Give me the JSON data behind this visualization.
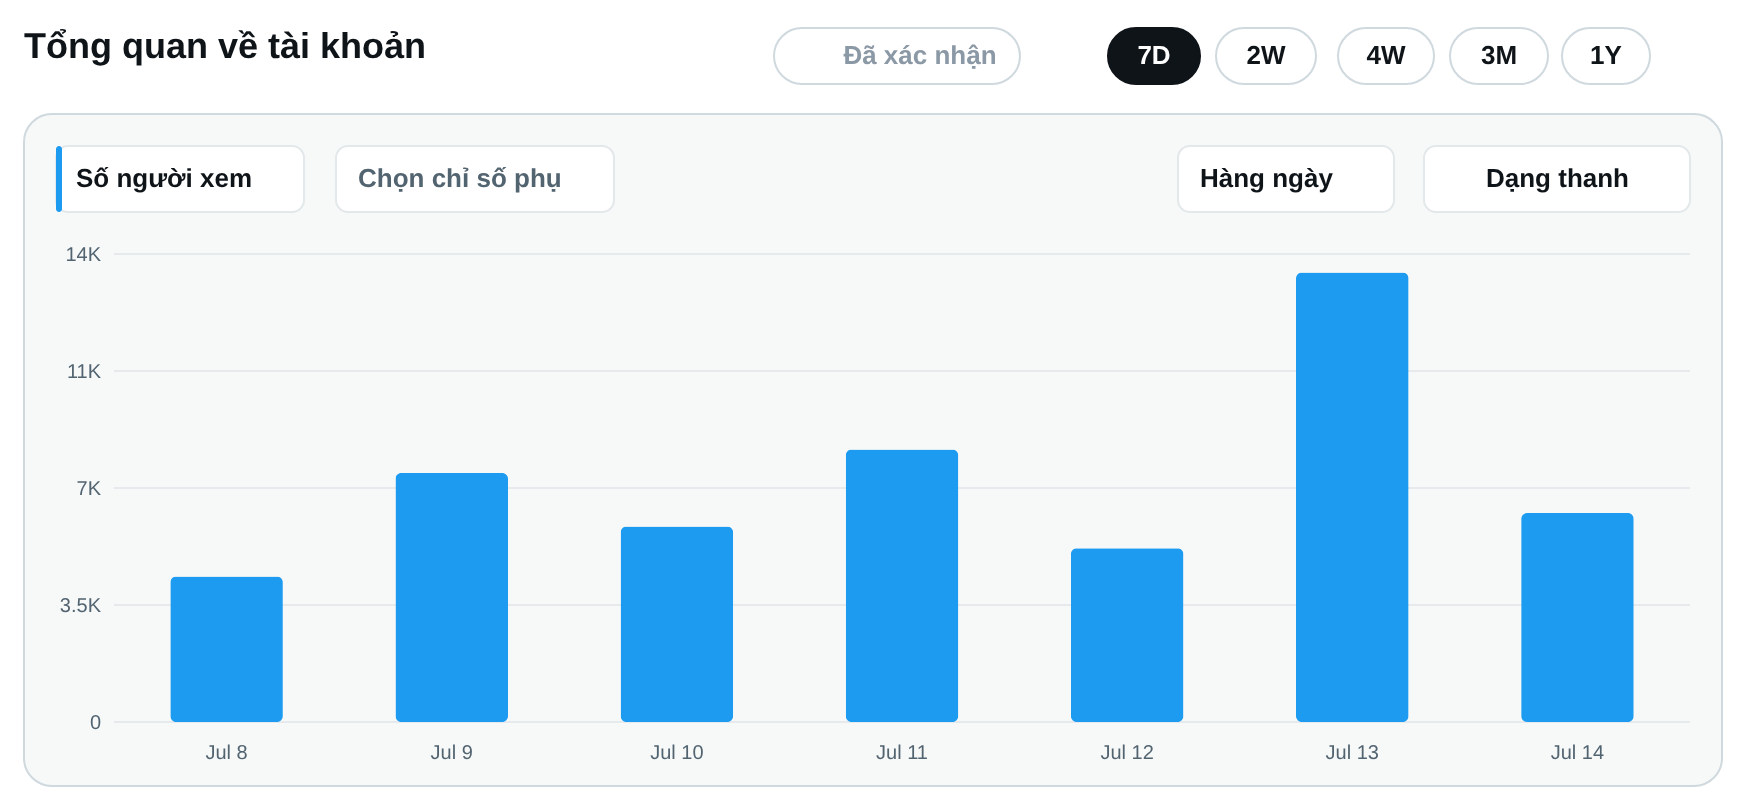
{
  "chart_data": {
    "type": "bar",
    "title": "Tổng quan về tài khoản",
    "categories": [
      "Jul 8",
      "Jul 9",
      "Jul 10",
      "Jul 11",
      "Jul 12",
      "Jul 13",
      "Jul 14"
    ],
    "values": [
      4350,
      7450,
      5850,
      8150,
      5200,
      13450,
      6250
    ],
    "color": "#1d9bf0",
    "ylim": [
      0,
      14000
    ],
    "yticks": [
      0,
      {
        "value": 3500,
        "label": "3.5K"
      },
      {
        "value": 7000,
        "label": "7K"
      },
      {
        "value": 10500,
        "label": "11K"
      },
      {
        "value": 14000,
        "label": "14K"
      }
    ],
    "grid": "y",
    "annotations": [
      "Đã xác nhận",
      "7D",
      "2W",
      "4W",
      "3M",
      "1Y",
      "Số người xem",
      "Chọn chỉ số phụ",
      "Hàng ngày",
      "Dạng thanh"
    ]
  }
}
